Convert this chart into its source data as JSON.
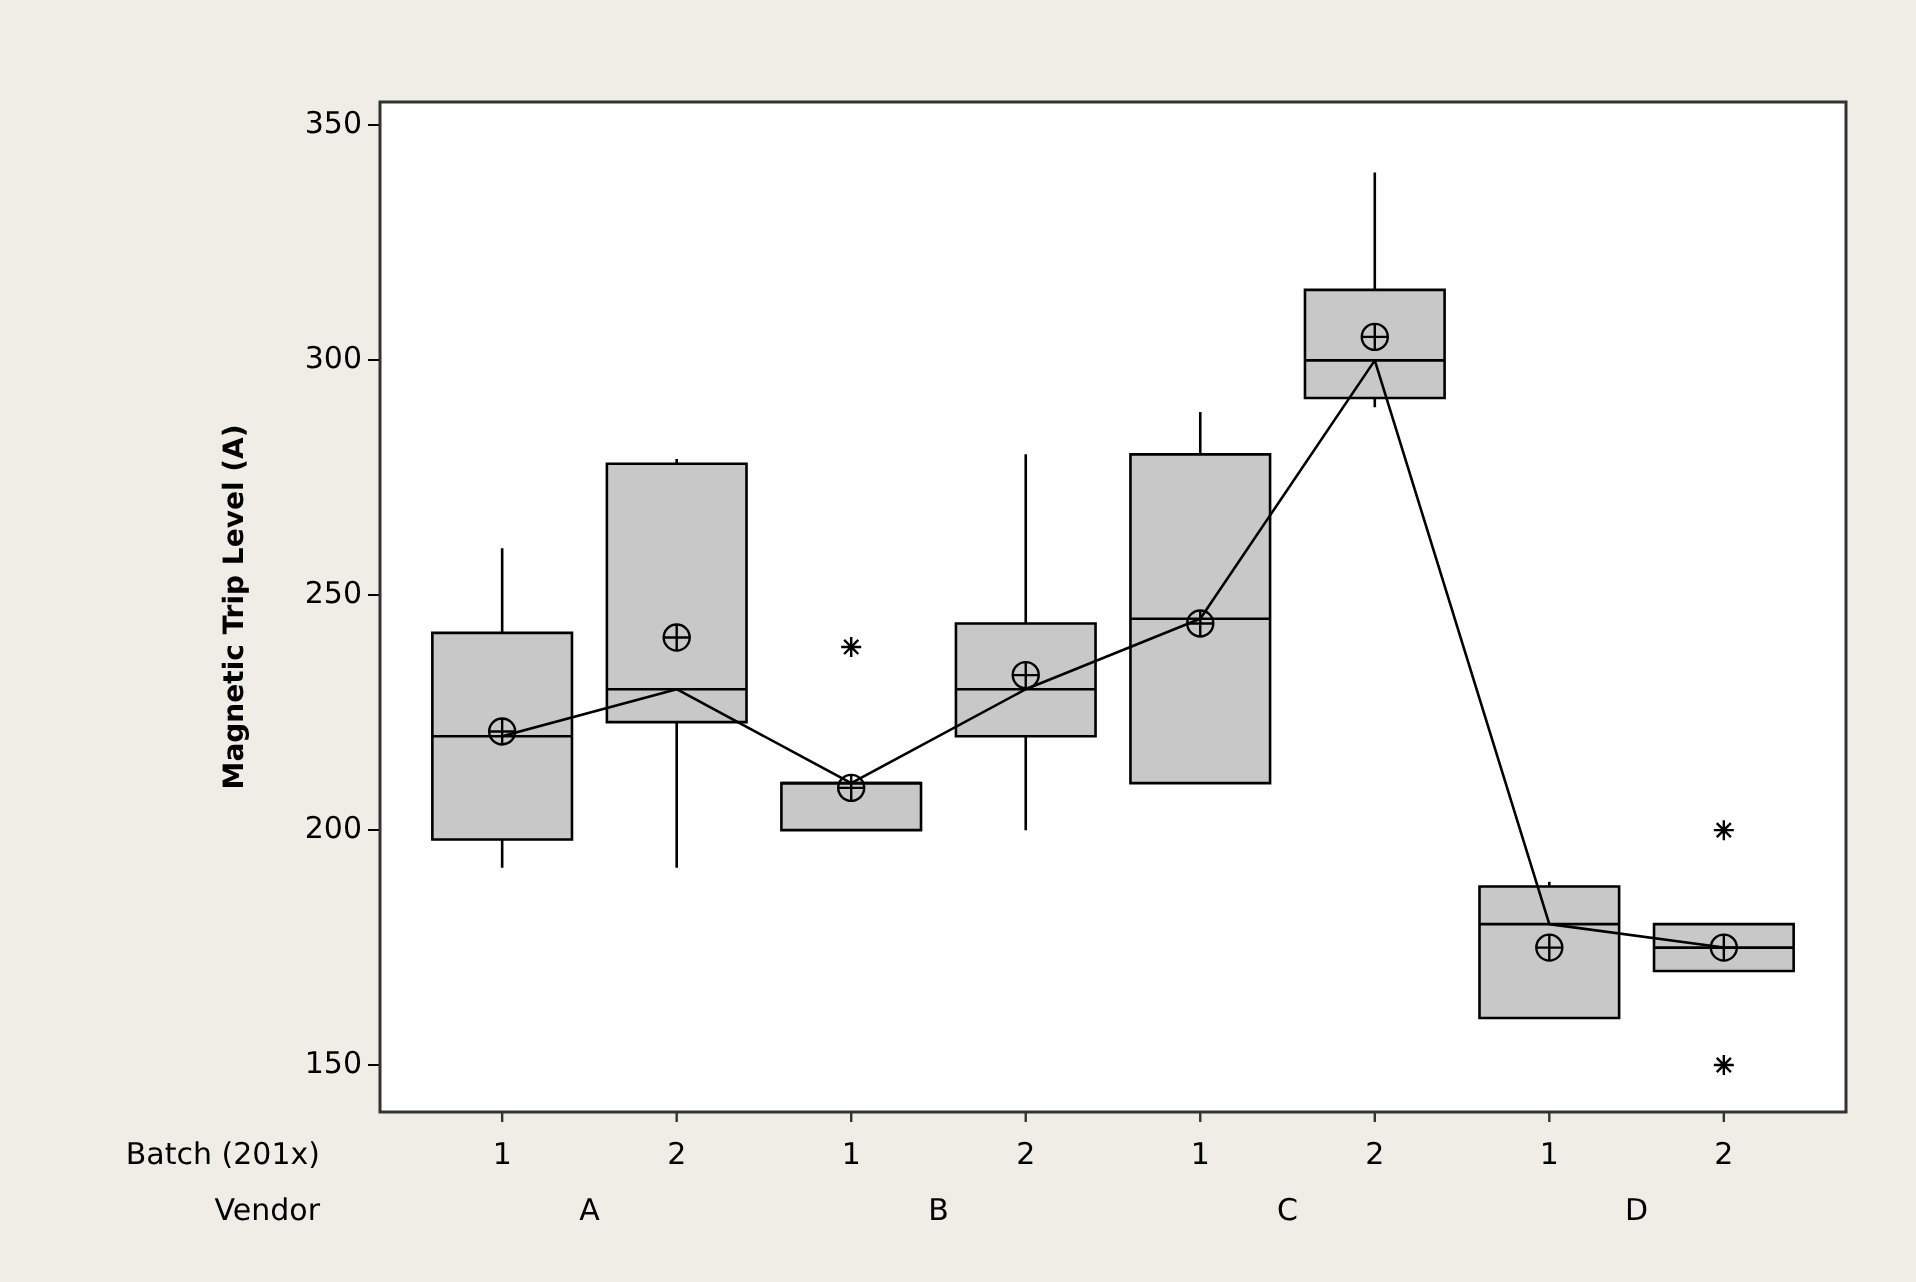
{
  "chart_data": {
    "type": "box",
    "ylabel": "Magnetic Trip Level (A)",
    "xlabel": "Batch (201x)",
    "annotations": [
      "Vendor",
      "A",
      "B",
      "C",
      "D"
    ],
    "categories": [
      "1",
      "2",
      "1",
      "2",
      "1",
      "2",
      "1",
      "2"
    ],
    "color": "#c8c8c8",
    "boxes": [
      {
        "low": 192,
        "q1": 198,
        "median": 220,
        "q3": 242,
        "high": 260,
        "mean": 221
      },
      {
        "low": 192,
        "q1": 223,
        "median": 230,
        "q3": 278,
        "high": 279,
        "mean": 241
      },
      {
        "low": 200,
        "q1": 200,
        "median": 210,
        "q3": 210,
        "high": 210,
        "mean": 209,
        "outliers": [
          239
        ]
      },
      {
        "low": 200,
        "q1": 220,
        "median": 230,
        "q3": 244,
        "high": 280,
        "mean": 233
      },
      {
        "low": 210,
        "q1": 210,
        "median": 245,
        "q3": 280,
        "high": 289,
        "mean": 244
      },
      {
        "low": 290,
        "q1": 292,
        "median": 300,
        "q3": 315,
        "high": 340,
        "mean": 305
      },
      {
        "low": 160,
        "q1": 160,
        "median": 180,
        "q3": 188,
        "high": 189,
        "mean": 175
      },
      {
        "low": 170,
        "q1": 170,
        "median": 175,
        "q3": 180,
        "high": 180,
        "mean": 175,
        "outliers": [
          200,
          150
        ]
      }
    ],
    "series": [
      {
        "type": "line",
        "color": "#000000",
        "values": [
          220,
          230,
          210,
          230,
          245,
          300,
          180,
          175
        ]
      }
    ],
    "ylim": [
      140,
      355
    ],
    "yticks": [
      150,
      200,
      250,
      300,
      350
    ],
    "grid": false,
    "legend": false
  }
}
